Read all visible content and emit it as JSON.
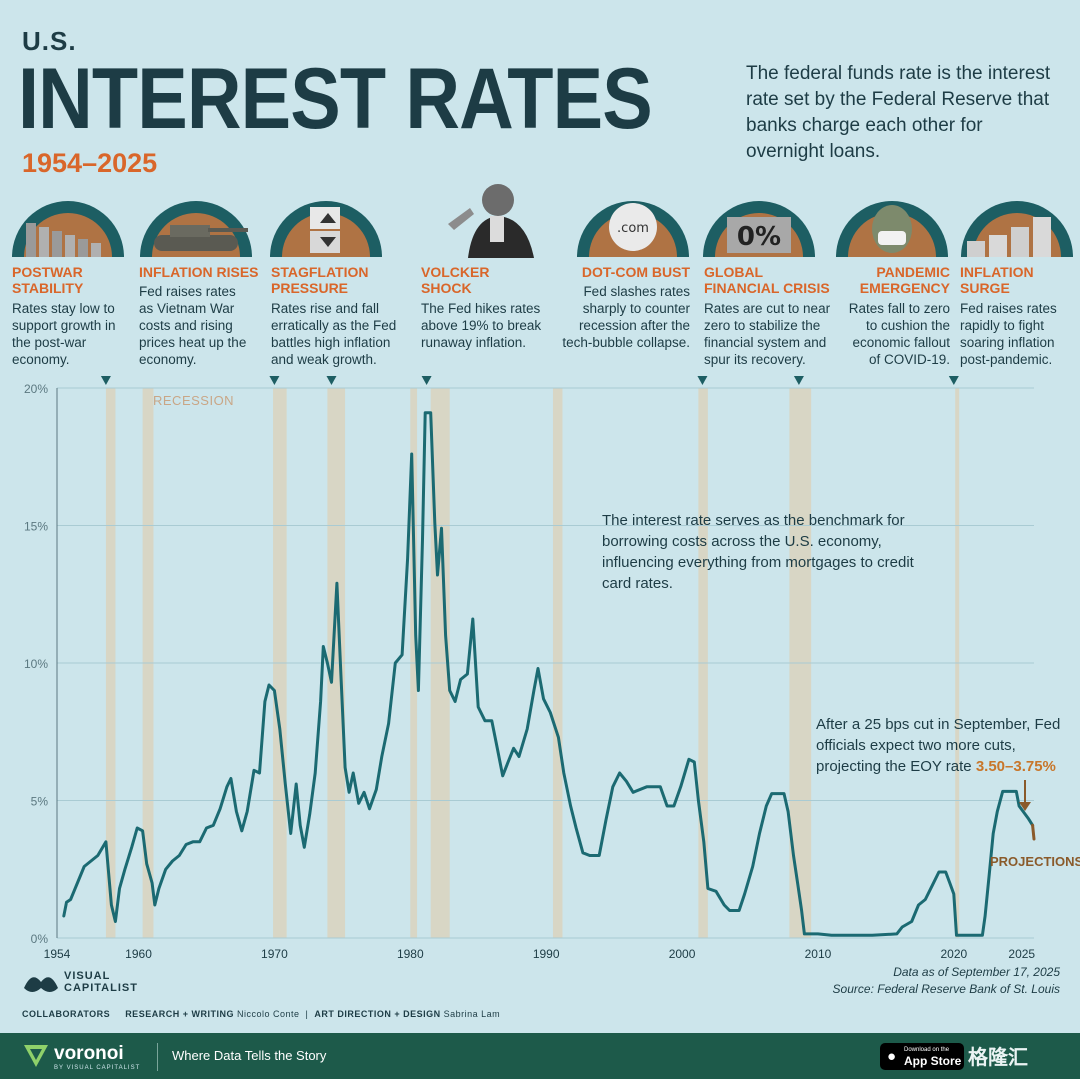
{
  "header": {
    "pretitle": "U.S.",
    "title": "INTEREST RATES",
    "years": "1954–2025",
    "intro": "The federal funds rate is the interest rate set by the Federal Reserve that banks charge each other for overnight loans."
  },
  "events": [
    {
      "id": "postwar",
      "title": "POSTWAR STABILITY",
      "desc": "Rates stay low to support growth in the post-war economy.",
      "icon": "falling-bars-icon"
    },
    {
      "id": "inflation",
      "title": "INFLATION RISES",
      "desc": "Fed raises rates as Vietnam War costs and rising prices heat up the economy.",
      "icon": "tank-icon"
    },
    {
      "id": "stagflation",
      "title": "STAGFLATION PRESSURE",
      "desc": "Rates rise and fall erratically as the Fed battles high inflation and weak growth.",
      "icon": "percent-dice-icon"
    },
    {
      "id": "volcker",
      "title": "VOLCKER SHOCK",
      "desc": "The Fed hikes rates above 19% to break runaway inflation.",
      "icon": "volcker-portrait-icon"
    },
    {
      "id": "dotcom",
      "title": "DOT-COM BUST",
      "desc": "Fed slashes rates sharply to counter recession after the tech-bubble collapse.",
      "icon": "dotcom-ball-icon",
      "icon_text": ".com"
    },
    {
      "id": "gfc",
      "title": "GLOBAL FINANCIAL CRISIS",
      "desc": "Rates are cut to near zero to stabilize the financial system and spur its recovery.",
      "icon": "zero-percent-blocks-icon",
      "icon_text": "0%"
    },
    {
      "id": "pandemic",
      "title": "PANDEMIC EMERGENCY",
      "desc": "Rates fall to zero to cushion the economic fallout of COVID-19.",
      "icon": "masked-franklin-icon"
    },
    {
      "id": "surge",
      "title": "INFLATION SURGE",
      "desc": "Fed raises rates rapidly to fight soaring inflation post-pandemic.",
      "icon": "coin-stacks-icon"
    }
  ],
  "chart_data": {
    "type": "line",
    "title": "",
    "xlabel": "",
    "ylabel": "",
    "xlim": [
      1954,
      2025.9
    ],
    "ylim": [
      0,
      20
    ],
    "x_ticks": [
      1954,
      1960,
      1970,
      1980,
      1990,
      2000,
      2010,
      2020,
      2025
    ],
    "y_ticks": [
      0,
      5,
      10,
      15,
      20
    ],
    "y_tick_labels": [
      "0%",
      "5%",
      "10%",
      "15%",
      "20%"
    ],
    "grid": "horizontal",
    "recession_label": "RECESSION",
    "recessions": [
      [
        1957.6,
        1958.3
      ],
      [
        1960.3,
        1961.1
      ],
      [
        1969.9,
        1970.9
      ],
      [
        1973.9,
        1975.2
      ],
      [
        1980.0,
        1980.5
      ],
      [
        1981.5,
        1982.9
      ],
      [
        1990.5,
        1991.2
      ],
      [
        2001.2,
        2001.9
      ],
      [
        2007.9,
        2009.5
      ],
      [
        2020.1,
        2020.3
      ]
    ],
    "series": [
      {
        "points": [
          [
            1954.5,
            0.8
          ],
          [
            1954.7,
            1.3
          ],
          [
            1955,
            1.4
          ],
          [
            1955.5,
            2.0
          ],
          [
            1956,
            2.6
          ],
          [
            1956.5,
            2.8
          ],
          [
            1957,
            3.0
          ],
          [
            1957.6,
            3.5
          ],
          [
            1958,
            1.2
          ],
          [
            1958.3,
            0.6
          ],
          [
            1958.6,
            1.8
          ],
          [
            1959,
            2.5
          ],
          [
            1959.5,
            3.3
          ],
          [
            1959.9,
            4.0
          ],
          [
            1960.3,
            3.9
          ],
          [
            1960.6,
            2.7
          ],
          [
            1961,
            2.0
          ],
          [
            1961.2,
            1.2
          ],
          [
            1961.5,
            1.8
          ],
          [
            1962,
            2.5
          ],
          [
            1962.5,
            2.8
          ],
          [
            1963,
            3.0
          ],
          [
            1963.5,
            3.4
          ],
          [
            1964,
            3.5
          ],
          [
            1964.5,
            3.5
          ],
          [
            1965,
            4.0
          ],
          [
            1965.5,
            4.1
          ],
          [
            1966,
            4.7
          ],
          [
            1966.5,
            5.5
          ],
          [
            1966.8,
            5.8
          ],
          [
            1967.2,
            4.6
          ],
          [
            1967.6,
            3.9
          ],
          [
            1968,
            4.6
          ],
          [
            1968.5,
            6.1
          ],
          [
            1968.9,
            6.0
          ],
          [
            1969.3,
            8.6
          ],
          [
            1969.6,
            9.2
          ],
          [
            1970,
            9.0
          ],
          [
            1970.4,
            7.6
          ],
          [
            1970.8,
            5.6
          ],
          [
            1971.2,
            3.8
          ],
          [
            1971.6,
            5.6
          ],
          [
            1971.9,
            4.1
          ],
          [
            1972.2,
            3.3
          ],
          [
            1972.6,
            4.5
          ],
          [
            1973,
            6.0
          ],
          [
            1973.4,
            8.6
          ],
          [
            1973.6,
            10.6
          ],
          [
            1973.9,
            10.0
          ],
          [
            1974.2,
            9.3
          ],
          [
            1974.6,
            12.9
          ],
          [
            1974.9,
            9.5
          ],
          [
            1975.2,
            6.2
          ],
          [
            1975.5,
            5.3
          ],
          [
            1975.8,
            6.0
          ],
          [
            1976.2,
            4.9
          ],
          [
            1976.6,
            5.3
          ],
          [
            1977,
            4.7
          ],
          [
            1977.5,
            5.4
          ],
          [
            1977.9,
            6.6
          ],
          [
            1978.4,
            7.8
          ],
          [
            1978.9,
            10.0
          ],
          [
            1979.4,
            10.3
          ],
          [
            1979.8,
            13.8
          ],
          [
            1980.1,
            17.6
          ],
          [
            1980.4,
            11.0
          ],
          [
            1980.6,
            9.0
          ],
          [
            1980.9,
            14.5
          ],
          [
            1981.1,
            19.1
          ],
          [
            1981.5,
            19.1
          ],
          [
            1981.8,
            15.1
          ],
          [
            1982,
            13.2
          ],
          [
            1982.3,
            14.9
          ],
          [
            1982.6,
            11.0
          ],
          [
            1982.9,
            9.0
          ],
          [
            1983.3,
            8.6
          ],
          [
            1983.7,
            9.4
          ],
          [
            1984.2,
            9.6
          ],
          [
            1984.6,
            11.6
          ],
          [
            1985,
            8.4
          ],
          [
            1985.5,
            7.9
          ],
          [
            1986,
            7.9
          ],
          [
            1986.4,
            6.9
          ],
          [
            1986.8,
            5.9
          ],
          [
            1987.2,
            6.4
          ],
          [
            1987.6,
            6.9
          ],
          [
            1988,
            6.6
          ],
          [
            1988.6,
            7.6
          ],
          [
            1989.1,
            9.0
          ],
          [
            1989.4,
            9.8
          ],
          [
            1989.8,
            8.7
          ],
          [
            1990.3,
            8.2
          ],
          [
            1990.9,
            7.3
          ],
          [
            1991.3,
            6.0
          ],
          [
            1991.8,
            4.8
          ],
          [
            1992.2,
            4.0
          ],
          [
            1992.7,
            3.1
          ],
          [
            1993.2,
            3.0
          ],
          [
            1993.9,
            3.0
          ],
          [
            1994.4,
            4.3
          ],
          [
            1994.9,
            5.5
          ],
          [
            1995.4,
            6.0
          ],
          [
            1995.9,
            5.7
          ],
          [
            1996.4,
            5.3
          ],
          [
            1997.4,
            5.5
          ],
          [
            1998.4,
            5.5
          ],
          [
            1998.9,
            4.8
          ],
          [
            1999.4,
            4.8
          ],
          [
            1999.9,
            5.5
          ],
          [
            2000.5,
            6.5
          ],
          [
            2000.9,
            6.4
          ],
          [
            2001.2,
            5.0
          ],
          [
            2001.6,
            3.5
          ],
          [
            2001.9,
            1.8
          ],
          [
            2002.5,
            1.7
          ],
          [
            2003.1,
            1.2
          ],
          [
            2003.5,
            1.0
          ],
          [
            2004.2,
            1.0
          ],
          [
            2004.6,
            1.6
          ],
          [
            2005.2,
            2.6
          ],
          [
            2005.7,
            3.8
          ],
          [
            2006.2,
            4.8
          ],
          [
            2006.6,
            5.25
          ],
          [
            2007.5,
            5.25
          ],
          [
            2007.8,
            4.6
          ],
          [
            2008.2,
            3.0
          ],
          [
            2008.5,
            2.0
          ],
          [
            2008.8,
            1.0
          ],
          [
            2009,
            0.15
          ],
          [
            2010,
            0.15
          ],
          [
            2011,
            0.1
          ],
          [
            2012,
            0.1
          ],
          [
            2013,
            0.1
          ],
          [
            2014,
            0.1
          ],
          [
            2015.8,
            0.15
          ],
          [
            2016.2,
            0.4
          ],
          [
            2016.9,
            0.6
          ],
          [
            2017.4,
            1.2
          ],
          [
            2017.9,
            1.4
          ],
          [
            2018.4,
            1.9
          ],
          [
            2018.9,
            2.4
          ],
          [
            2019.4,
            2.4
          ],
          [
            2019.7,
            2.0
          ],
          [
            2020,
            1.6
          ],
          [
            2020.2,
            0.1
          ],
          [
            2021,
            0.1
          ],
          [
            2022.1,
            0.1
          ],
          [
            2022.3,
            0.8
          ],
          [
            2022.6,
            2.3
          ],
          [
            2022.9,
            3.8
          ],
          [
            2023.2,
            4.6
          ],
          [
            2023.6,
            5.33
          ],
          [
            2024.6,
            5.33
          ],
          [
            2024.8,
            4.8
          ],
          [
            2025.5,
            4.33
          ],
          [
            2025.8,
            4.1
          ]
        ]
      },
      {
        "name": "Projections",
        "points": [
          [
            2025.8,
            4.1
          ],
          [
            2025.9,
            3.6
          ]
        ]
      }
    ],
    "event_markers": [
      1957.6,
      1970.0,
      1974.2,
      1981.2,
      2001.5,
      2008.6,
      2020.0
    ],
    "annotations": {
      "benchmark": "The interest rate serves as the benchmark for borrowing costs across the U.S. economy, influencing everything from mortgages to credit card rates.",
      "projection_prefix": "After a 25 bps cut in September, Fed officials expect two more cuts, projecting the EOY rate",
      "projection_value": "3.50–3.75%",
      "projections_label": "PROJECTIONS"
    },
    "colors": {
      "line": "#1b6a72",
      "recession": "#d9d3be",
      "projection": "#8a5a2a",
      "accent": "#d9662a"
    }
  },
  "source": {
    "date": "Data as of September 17, 2025",
    "source": "Source: Federal Reserve Bank of St. Louis"
  },
  "brand": {
    "vc_line1": "VISUAL",
    "vc_line2": "CAPITALIST",
    "collaborators": "COLLABORATORS",
    "research_label": "RESEARCH + WRITING",
    "research_name": "Niccolo Conte",
    "art_label": "ART DIRECTION + DESIGN",
    "art_name": "Sabrina Lam",
    "footer_brand": "voronoi",
    "footer_sub": "BY VISUAL CAPITALIST",
    "footer_tag": "Where Data Tells the Story",
    "appstore_small": "Download on the",
    "appstore_big": "App Store",
    "watermark": "格隆汇"
  }
}
